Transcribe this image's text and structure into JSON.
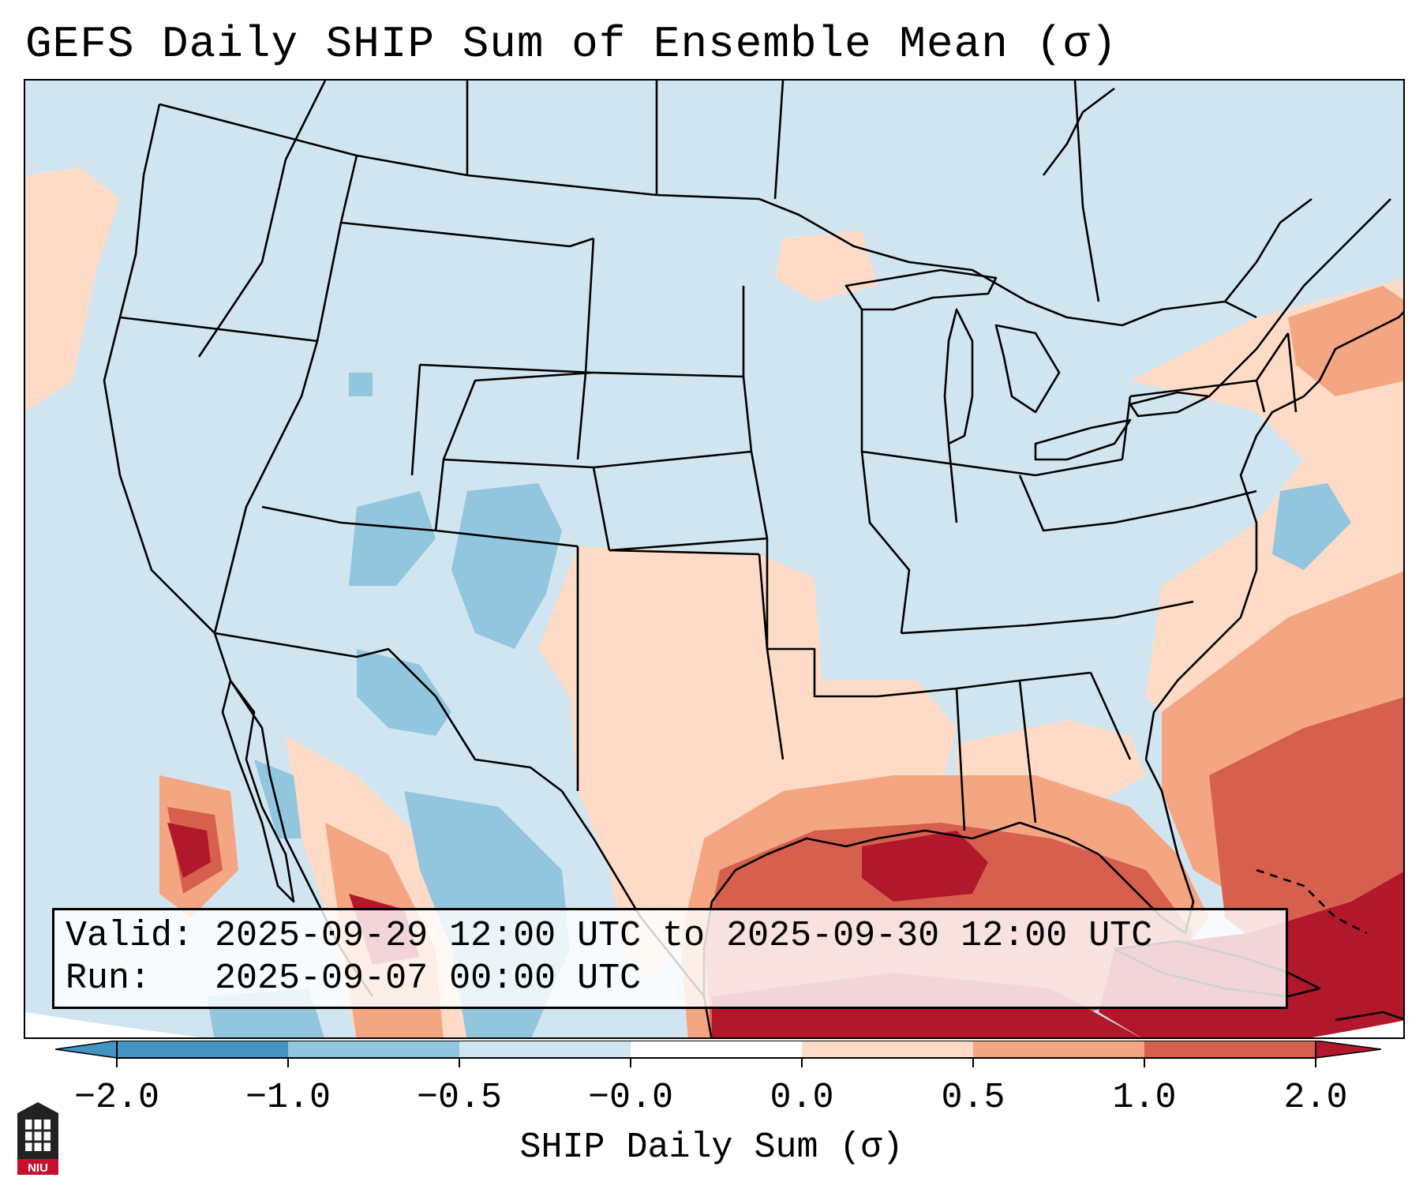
{
  "title": "GEFS Daily SHIP Sum of Ensemble Mean (σ)",
  "info": {
    "valid_line": "Valid: 2025-09-29 12:00 UTC to 2025-09-30 12:00 UTC",
    "run_line": "Run:   2025-09-07 00:00 UTC"
  },
  "colorbar": {
    "label": "SHIP Daily Sum (σ)",
    "ticks": [
      "−2.0",
      "−1.0",
      "−0.5",
      "−0.0",
      "0.0",
      "0.5",
      "1.0",
      "2.0"
    ],
    "colors": {
      "below_min": "#4393c3",
      "neg2_neg1": "#4393c3",
      "neg1_neg05": "#92c5de",
      "neg05_0": "#d1e5f0",
      "zero": "#ffffff",
      "pos0_05": "#fddbc7",
      "pos05_1": "#f4a582",
      "pos1_2": "#d6604d",
      "above_max": "#b2182b"
    }
  },
  "logo": {
    "text": "NIU",
    "color": "#c8102e"
  },
  "icons": [
    "colorbar-left-arrow-icon",
    "colorbar-right-arrow-icon",
    "niu-logo-icon"
  ]
}
